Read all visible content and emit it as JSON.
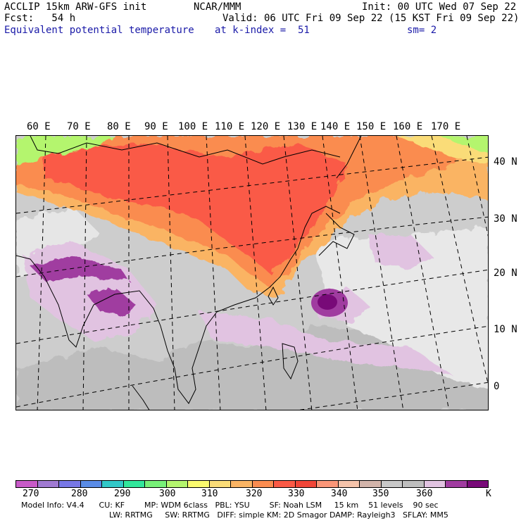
{
  "header": {
    "line1_left": "ACCLIP 15km ARW-GFS init",
    "line1_mid": "NCAR/MMM",
    "line1_right": "Init: 00 UTC Wed 07 Sep 22",
    "line2_left": "Fcst:   54 h",
    "line2_right": "Valid: 06 UTC Fri 09 Sep 22 (15 KST Fri 09 Sep 22)",
    "line3_left": "Equivalent potential temperature",
    "line3_mid": "at k-index =  51",
    "line3_right": "sm= 2"
  },
  "lon_labels": [
    "60 E",
    "70 E",
    "80 E",
    "90 E",
    "100 E",
    "110 E",
    "120 E",
    "130 E",
    "140 E",
    "150 E",
    "160 E",
    "170 E"
  ],
  "lat_labels": [
    "40 N",
    "30 N",
    "20 N",
    "10 N",
    "0"
  ],
  "colorbar": {
    "colors": [
      "#c85ac8",
      "#a07ad2",
      "#7878e6",
      "#5a8ce6",
      "#32c8c8",
      "#32e69b",
      "#78f078",
      "#b4f56e",
      "#fafa6e",
      "#fadc78",
      "#fab464",
      "#fa8c50",
      "#fa5a46",
      "#f04638",
      "#fa9678",
      "#f5c3aa",
      "#d2b4aa",
      "#c8c8c8",
      "#bebebe",
      "#e1c3e1",
      "#a03ca0",
      "#780a78"
    ],
    "tick_labels": [
      "270",
      "280",
      "290",
      "300",
      "310",
      "320",
      "330",
      "340",
      "350",
      "360",
      "K"
    ]
  },
  "footer": {
    "line1": "Model Info: V4.4      CU: KF        MP: WDM 6class   PBL: YSU        SF: Noah LSM     15 km    51 levels    90 sec",
    "line2": "LW: RRTMG     SW: RRTMG   DIFF: simple KM: 2D Smagor DAMP: Rayleigh3   SFLAY: MM5"
  }
}
